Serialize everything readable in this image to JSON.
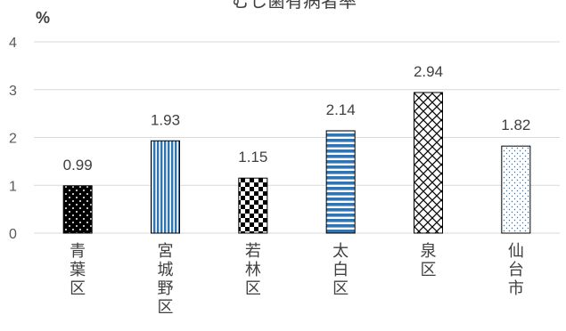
{
  "chart_data": {
    "type": "bar",
    "title": "むし歯有病者率",
    "ylabel": "%",
    "xlabel": "",
    "categories": [
      "青葉区",
      "宮城野区",
      "若林区",
      "太白区",
      "泉区",
      "仙台市"
    ],
    "values": [
      0.99,
      1.93,
      1.15,
      2.14,
      2.94,
      1.82
    ],
    "data_labels": [
      "0.99",
      "1.93",
      "1.15",
      "2.14",
      "2.94",
      "1.82"
    ],
    "ylim": [
      0,
      4
    ],
    "yticks": [
      0,
      1,
      2,
      3,
      4
    ],
    "grid": true,
    "legend": "none",
    "bar_patterns": [
      "dotted-dark",
      "vertical-stripes-blue",
      "checkerboard",
      "horizontal-stripes-blue",
      "diagonal-hatch",
      "dotted-light-blue"
    ],
    "colors": {
      "blue": "#2e75b6",
      "black": "#000000",
      "grid": "#d9d9d9",
      "text": "#404040"
    }
  }
}
